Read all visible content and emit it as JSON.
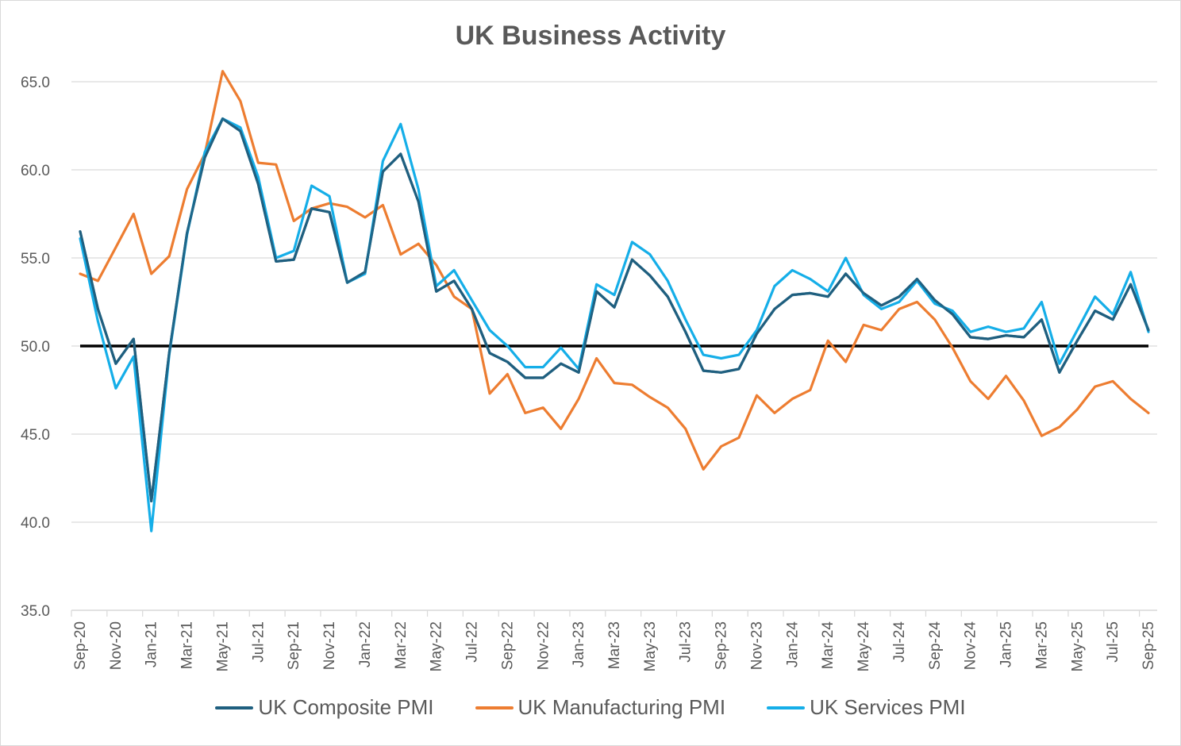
{
  "colors": {
    "composite": "#1f5f7f",
    "manufacturing": "#ed7d31",
    "services": "#15aee8",
    "threshold": "#000000",
    "grid": "#d9d9d9",
    "text": "#595959"
  },
  "chart_data": {
    "type": "line",
    "title": "UK Business Activity",
    "xlabel": "",
    "ylabel": "",
    "ylim": [
      35,
      65
    ],
    "y_ticks": [
      "35.0",
      "40.0",
      "45.0",
      "50.0",
      "55.0",
      "60.0",
      "65.0"
    ],
    "y_tick_values": [
      35,
      40,
      45,
      50,
      55,
      60,
      65
    ],
    "x_tick_labels": [
      "Sep-20",
      "Nov-20",
      "Jan-21",
      "Mar-21",
      "May-21",
      "Jul-21",
      "Sep-21",
      "Nov-21",
      "Jan-22",
      "Mar-22",
      "May-22",
      "Jul-22",
      "Sep-22",
      "Nov-22",
      "Jan-23",
      "Mar-23",
      "May-23",
      "Jul-23",
      "Sep-23",
      "Nov-23",
      "Jan-24",
      "Mar-24",
      "May-24",
      "Jul-24",
      "Sep-24",
      "Nov-24",
      "Jan-25",
      "Mar-25",
      "May-25",
      "Jul-25",
      "Sep-25"
    ],
    "x_tick_indices": [
      0,
      2,
      4,
      6,
      8,
      10,
      12,
      14,
      16,
      18,
      20,
      22,
      24,
      26,
      28,
      30,
      32,
      34,
      36,
      38,
      40,
      42,
      44,
      46,
      48,
      50,
      52,
      54,
      56,
      58,
      60
    ],
    "n_points": 61,
    "reference_line": 50,
    "grid": "horizontal",
    "legend_position": "bottom",
    "series": [
      {
        "name": "UK Composite PMI",
        "key": "composite",
        "values": [
          56.5,
          52.1,
          49.0,
          50.4,
          41.2,
          49.6,
          56.4,
          60.7,
          62.9,
          62.2,
          59.2,
          54.8,
          54.9,
          57.8,
          57.6,
          53.6,
          54.2,
          59.9,
          60.9,
          58.2,
          53.1,
          53.7,
          52.1,
          49.6,
          49.1,
          48.2,
          48.2,
          49.0,
          48.5,
          53.1,
          52.2,
          54.9,
          54.0,
          52.8,
          50.8,
          48.6,
          48.5,
          48.7,
          50.7,
          52.1,
          52.9,
          53.0,
          52.8,
          54.1,
          53.0,
          52.3,
          52.8,
          53.8,
          52.6,
          51.8,
          50.5,
          50.4,
          50.6,
          50.5,
          51.5,
          48.5,
          50.3,
          52.0,
          51.5,
          53.5,
          50.9
        ]
      },
      {
        "name": "UK Manufacturing PMI",
        "key": "manufacturing",
        "values": [
          54.1,
          53.7,
          55.6,
          57.5,
          54.1,
          55.1,
          58.9,
          60.9,
          65.6,
          63.9,
          60.4,
          60.3,
          57.1,
          57.8,
          58.1,
          57.9,
          57.3,
          58.0,
          55.2,
          55.8,
          54.6,
          52.8,
          52.1,
          47.3,
          48.4,
          46.2,
          46.5,
          45.3,
          47.0,
          49.3,
          47.9,
          47.8,
          47.1,
          46.5,
          45.3,
          43.0,
          44.3,
          44.8,
          47.2,
          46.2,
          47.0,
          47.5,
          50.3,
          49.1,
          51.2,
          50.9,
          52.1,
          52.5,
          51.5,
          49.9,
          48.0,
          47.0,
          48.3,
          46.9,
          44.9,
          45.4,
          46.4,
          47.7,
          48.0,
          47.0,
          46.2
        ]
      },
      {
        "name": "UK Services PMI",
        "key": "services",
        "values": [
          56.1,
          51.4,
          47.6,
          49.4,
          39.5,
          49.5,
          56.3,
          61.0,
          62.9,
          62.4,
          59.6,
          55.0,
          55.4,
          59.1,
          58.5,
          53.6,
          54.1,
          60.5,
          62.6,
          58.9,
          53.4,
          54.3,
          52.6,
          50.9,
          50.0,
          48.8,
          48.8,
          49.9,
          48.7,
          53.5,
          52.9,
          55.9,
          55.2,
          53.7,
          51.5,
          49.5,
          49.3,
          49.5,
          50.9,
          53.4,
          54.3,
          53.8,
          53.1,
          55.0,
          52.9,
          52.1,
          52.5,
          53.7,
          52.4,
          52.0,
          50.8,
          51.1,
          50.8,
          51.0,
          52.5,
          49.0,
          50.9,
          52.8,
          51.8,
          54.2,
          50.8
        ]
      }
    ]
  }
}
